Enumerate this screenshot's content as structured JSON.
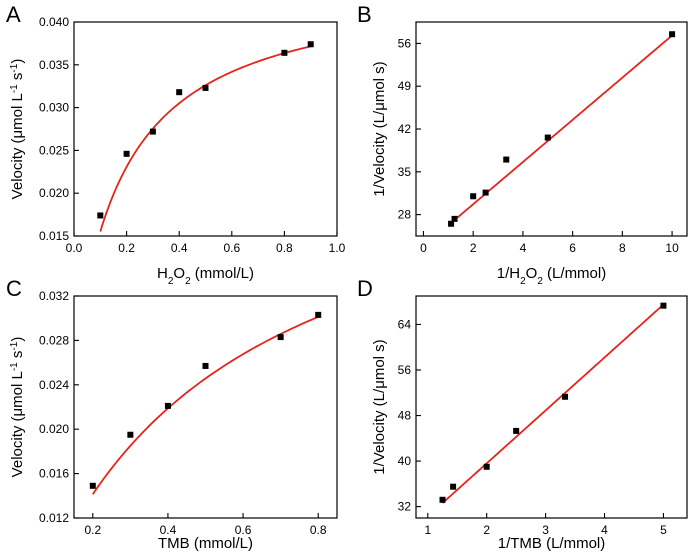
{
  "chart_data": [
    {
      "panel": "A",
      "type": "scatter",
      "fit": "michaelis-menten",
      "fit_params": {
        "vmax": 0.045,
        "km": 0.19,
        "x_start": 0.1,
        "x_end": 0.9
      },
      "xlabel_parts": [
        "H",
        "2",
        "O",
        "2",
        " (mmol/L)"
      ],
      "ylabel_parts": [
        "Velocity (μmol L",
        "-1",
        " s",
        "-1",
        ")"
      ],
      "x_ticks": [
        0.0,
        0.2,
        0.4,
        0.6,
        0.8,
        1.0
      ],
      "x_tick_labels": [
        "0.0",
        "0.2",
        "0.4",
        "0.6",
        "0.8",
        "1.0"
      ],
      "y_ticks": [
        0.015,
        0.02,
        0.025,
        0.03,
        0.035,
        0.04
      ],
      "y_tick_labels": [
        "0.015",
        "0.020",
        "0.025",
        "0.030",
        "0.035",
        "0.040"
      ],
      "xlim": [
        0.0,
        1.0
      ],
      "ylim": [
        0.015,
        0.04
      ],
      "x": [
        0.1,
        0.2,
        0.3,
        0.4,
        0.5,
        0.8,
        0.9
      ],
      "y": [
        0.0174,
        0.0246,
        0.0272,
        0.0318,
        0.0323,
        0.0364,
        0.0374
      ]
    },
    {
      "panel": "B",
      "type": "scatter",
      "fit": "linear",
      "fit_params": {
        "slope": 3.45,
        "intercept": 22.8,
        "x_start": 1.1,
        "x_end": 10.0
      },
      "xlabel_parts": [
        "1/H",
        "2",
        "O",
        "2",
        " (L/mmol)"
      ],
      "ylabel_parts": [
        "1/Velocity (L/μmol s)"
      ],
      "x_ticks": [
        0,
        2,
        4,
        6,
        8,
        10
      ],
      "x_tick_labels": [
        "0",
        "2",
        "4",
        "6",
        "8",
        "10"
      ],
      "y_ticks": [
        28,
        35,
        42,
        49,
        56
      ],
      "y_tick_labels": [
        "28",
        "35",
        "42",
        "49",
        "56"
      ],
      "xlim": [
        -0.3,
        10.6
      ],
      "ylim": [
        24.5,
        59.5
      ],
      "x": [
        1.11,
        1.25,
        2.0,
        2.5,
        3.33,
        5.0,
        10.0
      ],
      "y": [
        26.5,
        27.3,
        31.0,
        31.6,
        37.0,
        40.6,
        57.5
      ]
    },
    {
      "panel": "C",
      "type": "scatter",
      "fit": "michaelis-menten",
      "fit_params": {
        "vmax": 0.0483,
        "km": 0.483,
        "x_start": 0.2,
        "x_end": 0.8
      },
      "xlabel_parts": [
        "TMB (mmol/L)"
      ],
      "ylabel_parts": [
        "Velocity (μmol L",
        "-1",
        " s",
        "-1",
        ")"
      ],
      "x_ticks": [
        0.2,
        0.4,
        0.6,
        0.8
      ],
      "x_tick_labels": [
        "0.2",
        "0.4",
        "0.6",
        "0.8"
      ],
      "y_ticks": [
        0.012,
        0.016,
        0.02,
        0.024,
        0.028,
        0.032
      ],
      "y_tick_labels": [
        "0.012",
        "0.016",
        "0.020",
        "0.024",
        "0.028",
        "0.032"
      ],
      "xlim": [
        0.15,
        0.85
      ],
      "ylim": [
        0.012,
        0.032
      ],
      "x": [
        0.2,
        0.3,
        0.4,
        0.5,
        0.7,
        0.8
      ],
      "y": [
        0.0149,
        0.0195,
        0.0221,
        0.0257,
        0.0283,
        0.0303
      ]
    },
    {
      "panel": "D",
      "type": "scatter",
      "fit": "linear",
      "fit_params": {
        "slope": 9.3,
        "intercept": 21.0,
        "x_start": 1.25,
        "x_end": 5.0
      },
      "xlabel_parts": [
        "1/TMB (L/mmol)"
      ],
      "ylabel_parts": [
        "1/Velocity (L/μmol s)"
      ],
      "x_ticks": [
        1,
        2,
        3,
        4,
        5
      ],
      "x_tick_labels": [
        "1",
        "2",
        "3",
        "4",
        "5"
      ],
      "y_ticks": [
        32,
        40,
        48,
        56,
        64
      ],
      "y_tick_labels": [
        "32",
        "40",
        "48",
        "56",
        "64"
      ],
      "xlim": [
        0.8,
        5.4
      ],
      "ylim": [
        30.0,
        69.0
      ],
      "x": [
        1.25,
        1.43,
        2.0,
        2.5,
        3.33,
        5.0
      ],
      "y": [
        33.2,
        35.5,
        39.0,
        45.3,
        51.3,
        67.3
      ]
    }
  ]
}
